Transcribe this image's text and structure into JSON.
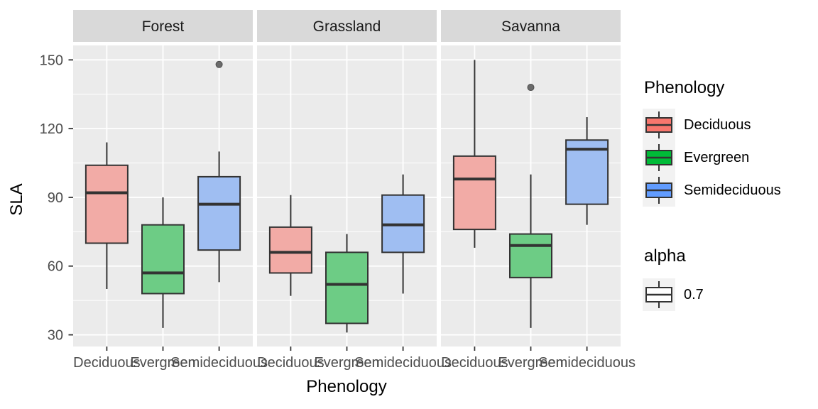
{
  "figure": {
    "y_axis_title": "SLA",
    "x_axis_title": "Phenology"
  },
  "legend": {
    "phenology_title": "Phenology",
    "entries": [
      {
        "label": "Deciduous",
        "color": "#F8766D",
        "fill": "#F2ABA6"
      },
      {
        "label": "Evergreen",
        "color": "#00BA38",
        "fill": "#6DCC85"
      },
      {
        "label": "Semideciduous",
        "color": "#619CFF",
        "fill": "#9FBEF2"
      }
    ],
    "alpha_title": "alpha",
    "alpha_label": "0.7",
    "alpha_fill": "#FFFFFF"
  },
  "colors": {
    "background": "#FFFFFF",
    "panel_bg": "#EBEBEB",
    "strip_bg": "#D9D9D9",
    "strip_text": "#1A1A1A",
    "grid": "#FFFFFF",
    "box_border": "#333333",
    "tick_text": "#4D4D4D",
    "tick_mark": "#333333",
    "outlier": "#6B6B6B",
    "legend_key_bg": "#F2F2F2"
  },
  "chart_data": {
    "type": "boxplot",
    "title": "",
    "xlabel": "Phenology",
    "ylabel": "SLA",
    "x_categories": [
      "Deciduous",
      "Evergreen",
      "Semideciduous"
    ],
    "y_ticks": [
      30,
      60,
      90,
      120,
      150
    ],
    "y_minor_ticks": [
      45,
      75,
      105,
      135
    ],
    "ylim": [
      24.9,
      156.3
    ],
    "alpha": 0.7,
    "grid": "on",
    "legend_position": "right",
    "facets": [
      {
        "label": "Forest",
        "boxes": [
          {
            "group": "Deciduous",
            "whisker_low": 50,
            "q1": 70,
            "median": 92,
            "q3": 104,
            "whisker_high": 114,
            "outliers": []
          },
          {
            "group": "Evergreen",
            "whisker_low": 33,
            "q1": 48,
            "median": 57,
            "q3": 78,
            "whisker_high": 90,
            "outliers": []
          },
          {
            "group": "Semideciduous",
            "whisker_low": 53,
            "q1": 67,
            "median": 87,
            "q3": 99,
            "whisker_high": 110,
            "outliers": [
              148
            ]
          }
        ]
      },
      {
        "label": "Grassland",
        "boxes": [
          {
            "group": "Deciduous",
            "whisker_low": 47,
            "q1": 57,
            "median": 66,
            "q3": 77,
            "whisker_high": 91,
            "outliers": []
          },
          {
            "group": "Evergreen",
            "whisker_low": 31,
            "q1": 35,
            "median": 52,
            "q3": 66,
            "whisker_high": 74,
            "outliers": []
          },
          {
            "group": "Semideciduous",
            "whisker_low": 48,
            "q1": 66,
            "median": 78,
            "q3": 91,
            "whisker_high": 100,
            "outliers": []
          }
        ]
      },
      {
        "label": "Savanna",
        "boxes": [
          {
            "group": "Deciduous",
            "whisker_low": 68,
            "q1": 76,
            "median": 98,
            "q3": 108,
            "whisker_high": 150,
            "outliers": []
          },
          {
            "group": "Evergreen",
            "whisker_low": 33,
            "q1": 55,
            "median": 69,
            "q3": 74,
            "whisker_high": 100,
            "outliers": [
              138
            ]
          },
          {
            "group": "Semideciduous",
            "whisker_low": 78,
            "q1": 87,
            "median": 111,
            "q3": 115,
            "whisker_high": 125,
            "outliers": []
          }
        ]
      }
    ]
  }
}
